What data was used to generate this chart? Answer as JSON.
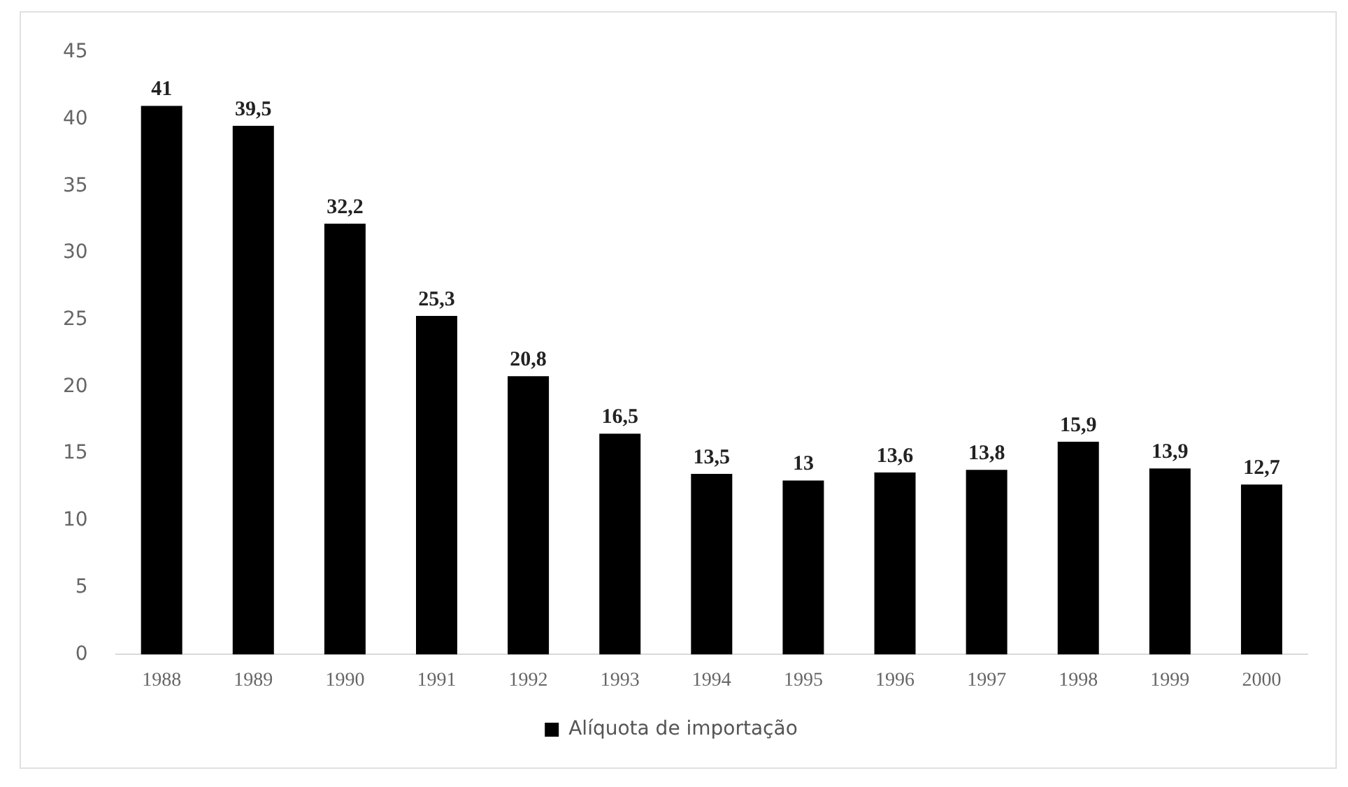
{
  "chart_data": {
    "type": "bar",
    "categories": [
      "1988",
      "1989",
      "1990",
      "1991",
      "1992",
      "1993",
      "1994",
      "1995",
      "1996",
      "1997",
      "1998",
      "1999",
      "2000"
    ],
    "series": [
      {
        "name": "Alíquota de importação",
        "color": "#000000",
        "values": [
          41,
          39.5,
          32.2,
          25.3,
          20.8,
          16.5,
          13.5,
          13,
          13.6,
          13.8,
          15.9,
          13.9,
          12.7
        ],
        "value_labels": [
          "41",
          "39,5",
          "32,2",
          "25,3",
          "20,8",
          "16,5",
          "13,5",
          "13",
          "13,6",
          "13,8",
          "15,9",
          "13,9",
          "12,7"
        ]
      }
    ],
    "ylim": [
      0,
      45
    ],
    "yticks": [
      0,
      5,
      10,
      15,
      20,
      25,
      30,
      35,
      40,
      45
    ],
    "grid": false,
    "legend": "bottom"
  }
}
